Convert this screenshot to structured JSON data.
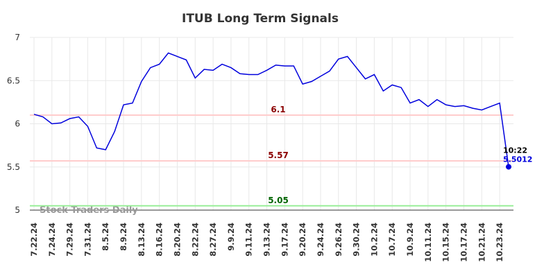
{
  "chart_data": {
    "type": "line",
    "title": "ITUB Long Term Signals",
    "categories": [
      "7.22.24",
      null,
      "7.24.24",
      null,
      "7.29.24",
      null,
      "7.31.24",
      null,
      "8.5.24",
      null,
      "8.9.24",
      null,
      "8.13.24",
      null,
      "8.16.24",
      null,
      "8.20.24",
      null,
      "8.22.24",
      null,
      "8.27.24",
      null,
      "9.9.24",
      null,
      "9.11.24",
      null,
      "9.13.24",
      null,
      "9.17.24",
      null,
      "9.20.24",
      null,
      "9.24.24",
      null,
      "9.26.24",
      null,
      "9.30.24",
      null,
      "10.2.24",
      null,
      "10.7.24",
      null,
      "10.9.24",
      null,
      "10.11.24",
      null,
      "10.15.24",
      null,
      "10.17.24",
      null,
      "10.21.24",
      null,
      "10.23.24",
      null
    ],
    "series": [
      {
        "name": "ITUB",
        "color": "#0000dd",
        "values": [
          6.11,
          6.08,
          6.0,
          6.01,
          6.06,
          6.08,
          5.97,
          5.72,
          5.7,
          5.91,
          6.22,
          6.24,
          6.49,
          6.65,
          6.69,
          6.82,
          6.78,
          6.74,
          6.53,
          6.63,
          6.62,
          6.69,
          6.65,
          6.58,
          6.57,
          6.57,
          6.62,
          6.68,
          6.67,
          6.67,
          6.46,
          6.49,
          6.55,
          6.61,
          6.75,
          6.78,
          6.65,
          6.52,
          6.57,
          6.38,
          6.45,
          6.42,
          6.24,
          6.28,
          6.2,
          6.28,
          6.22,
          6.2,
          6.21,
          6.18,
          6.16,
          6.2,
          6.24,
          5.5012
        ]
      }
    ],
    "ylim": [
      5,
      7
    ],
    "yticks": [
      5,
      5.5,
      6,
      6.5,
      7
    ],
    "grid": true,
    "hlines": [
      {
        "value": 6.1,
        "color": "#ffcccc",
        "label_color": "#8b0000"
      },
      {
        "value": 5.57,
        "color": "#ffcccc",
        "label_color": "#8b0000"
      },
      {
        "value": 5.05,
        "color": "#99ee99",
        "label_color": "#006400"
      }
    ],
    "last_time": "10:22",
    "watermark": "Stock Traders Daily"
  }
}
